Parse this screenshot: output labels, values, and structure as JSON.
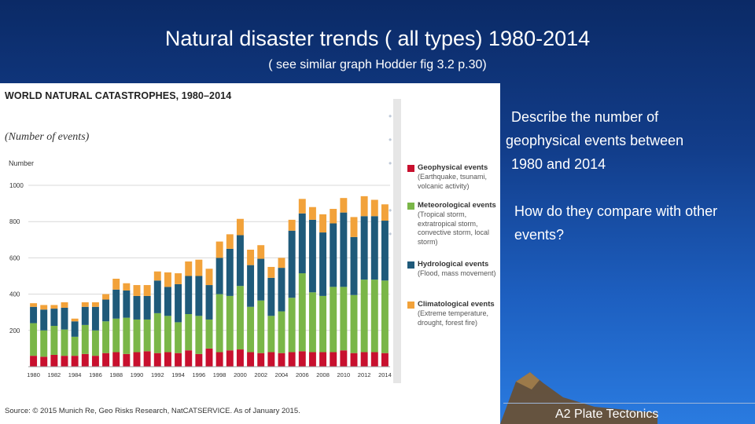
{
  "slide": {
    "title": "Natural disaster trends ( all types) 1980-2014",
    "subtitle": "( see similar graph Hodder fig 3.2 p.30)",
    "q1_line1": "Describe the number of",
    "q1_line2": "geophysical events between",
    "q1_line3": "1980 and 2014",
    "q2_line1": "How do they compare with other",
    "q2_line2": "events?",
    "footer": "A2 Plate Tectonics"
  },
  "chart_data": {
    "type": "bar",
    "stacked": true,
    "title": "WORLD NATURAL CATASTROPHES, 1980–2014",
    "unit_label": "(Number of events)",
    "ylabel": "Number",
    "source": "Source: © 2015 Munich Re, Geo Risks Research, NatCATSERVICE. As of January 2015.",
    "ylim": [
      0,
      1000
    ],
    "yticks": [
      "200",
      "400",
      "600",
      "800",
      "1000"
    ],
    "x": [
      1980,
      1981,
      1982,
      1983,
      1984,
      1985,
      1986,
      1987,
      1988,
      1989,
      1990,
      1991,
      1992,
      1993,
      1994,
      1995,
      1996,
      1997,
      1998,
      1999,
      2000,
      2001,
      2002,
      2003,
      2004,
      2005,
      2006,
      2007,
      2008,
      2009,
      2010,
      2011,
      2012,
      2013,
      2014
    ],
    "xtick_labels": [
      "1980",
      "1982",
      "1984",
      "1986",
      "1988",
      "1990",
      "1992",
      "1994",
      "1996",
      "1998",
      "2000",
      "2002",
      "2004",
      "2006",
      "2008",
      "2010",
      "2012",
      "2014"
    ],
    "series": [
      {
        "name": "Geophysical events",
        "description": "(Earthquake, tsunami, volcanic activity)",
        "color": "#c8102e",
        "values": [
          60,
          55,
          65,
          60,
          60,
          70,
          60,
          75,
          80,
          70,
          80,
          85,
          75,
          80,
          75,
          90,
          70,
          100,
          80,
          90,
          95,
          80,
          75,
          80,
          75,
          80,
          85,
          80,
          80,
          80,
          90,
          75,
          80,
          80,
          75
        ]
      },
      {
        "name": "Meteorological events",
        "description": "(Tropical storm, extratropical storm, convective storm, local storm)",
        "color": "#7ab648",
        "values": [
          180,
          145,
          160,
          145,
          105,
          160,
          140,
          175,
          185,
          200,
          180,
          175,
          220,
          200,
          170,
          200,
          210,
          160,
          320,
          300,
          350,
          250,
          290,
          200,
          230,
          300,
          430,
          330,
          310,
          360,
          350,
          320,
          400,
          400,
          400
        ]
      },
      {
        "name": "Hydrological events",
        "description": "(Flood, mass movement)",
        "color": "#1f5a7a",
        "values": [
          90,
          115,
          95,
          120,
          85,
          100,
          130,
          120,
          160,
          150,
          130,
          130,
          180,
          160,
          210,
          210,
          220,
          190,
          200,
          260,
          280,
          230,
          230,
          210,
          240,
          370,
          330,
          400,
          350,
          350,
          410,
          320,
          350,
          350,
          330
        ]
      },
      {
        "name": "Climatological events",
        "description": "(Extreme temperature, drought, forest fire)",
        "color": "#f2a23a",
        "values": [
          20,
          25,
          20,
          30,
          15,
          25,
          25,
          30,
          60,
          40,
          60,
          60,
          50,
          80,
          60,
          80,
          90,
          90,
          90,
          80,
          90,
          85,
          75,
          60,
          55,
          60,
          80,
          70,
          100,
          80,
          80,
          110,
          110,
          90,
          90
        ]
      }
    ],
    "legend_position": "right",
    "grid": true
  }
}
